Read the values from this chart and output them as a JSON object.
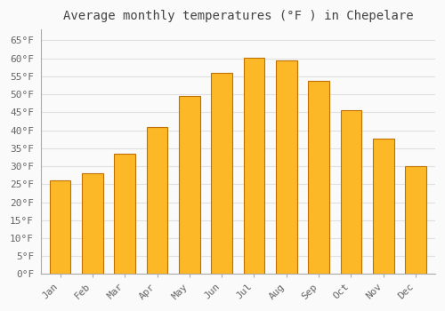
{
  "title": "Average monthly temperatures (°F ) in Chepelare",
  "months": [
    "Jan",
    "Feb",
    "Mar",
    "Apr",
    "May",
    "Jun",
    "Jul",
    "Aug",
    "Sep",
    "Oct",
    "Nov",
    "Dec"
  ],
  "values": [
    26.1,
    28.0,
    33.4,
    41.0,
    49.6,
    56.0,
    60.1,
    59.4,
    53.8,
    45.5,
    37.6,
    30.0
  ],
  "bar_color_top": "#FDB827",
  "bar_color_bottom": "#F07800",
  "bar_edge_color": "#C07000",
  "background_color": "#FAFAFA",
  "grid_color": "#E0E0E0",
  "title_fontsize": 10,
  "tick_fontsize": 8,
  "ylim": [
    0,
    68
  ],
  "yticks": [
    0,
    5,
    10,
    15,
    20,
    25,
    30,
    35,
    40,
    45,
    50,
    55,
    60,
    65
  ]
}
